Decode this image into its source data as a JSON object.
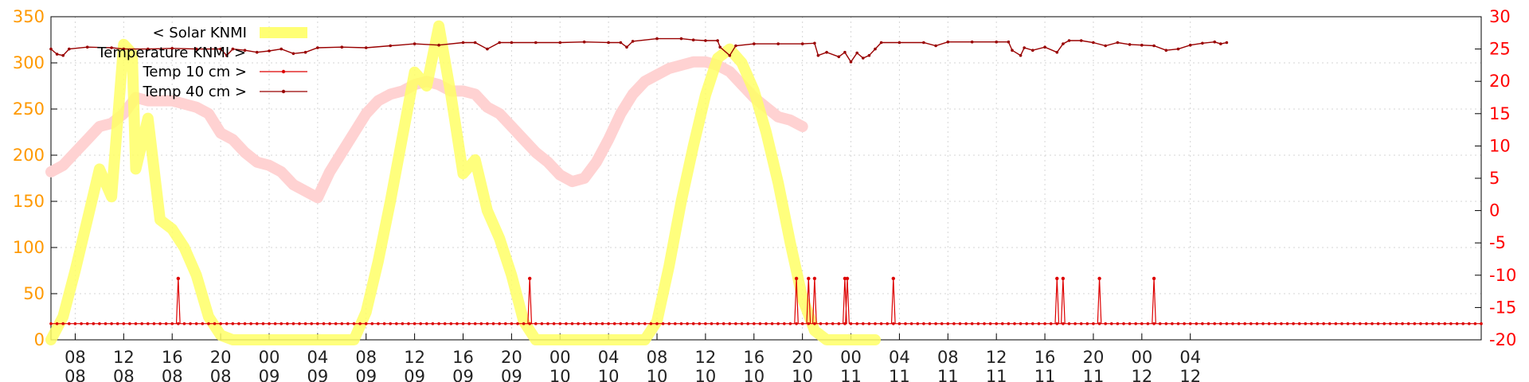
{
  "chart_data": {
    "type": "line",
    "grid": true,
    "legend_placement": "top-left",
    "x_range_hours": [
      0,
      118
    ],
    "x_ticks": [
      {
        "h": 2,
        "label": "08\n08"
      },
      {
        "h": 6,
        "label": "12\n08"
      },
      {
        "h": 10,
        "label": "16\n08"
      },
      {
        "h": 14,
        "label": "20\n08"
      },
      {
        "h": 18,
        "label": "00\n09"
      },
      {
        "h": 22,
        "label": "04\n09"
      },
      {
        "h": 26,
        "label": "08\n09"
      },
      {
        "h": 30,
        "label": "12\n09"
      },
      {
        "h": 34,
        "label": "16\n09"
      },
      {
        "h": 38,
        "label": "20\n09"
      },
      {
        "h": 42,
        "label": "00\n10"
      },
      {
        "h": 46,
        "label": "04\n10"
      },
      {
        "h": 50,
        "label": "08\n10"
      },
      {
        "h": 54,
        "label": "12\n10"
      },
      {
        "h": 58,
        "label": "16\n10"
      },
      {
        "h": 62,
        "label": "20\n10"
      },
      {
        "h": 66,
        "label": "00\n11"
      },
      {
        "h": 70,
        "label": "04\n11"
      },
      {
        "h": 74,
        "label": "08\n11"
      },
      {
        "h": 78,
        "label": "12\n11"
      },
      {
        "h": 82,
        "label": "16\n11"
      },
      {
        "h": 86,
        "label": "20\n11"
      },
      {
        "h": 90,
        "label": "00\n12"
      },
      {
        "h": 94,
        "label": "04\n12"
      }
    ],
    "y_left": {
      "min": 0,
      "max": 350,
      "ticks": [
        0,
        50,
        100,
        150,
        200,
        250,
        300,
        350
      ],
      "color": "#ff9900"
    },
    "y_right": {
      "min": -20,
      "max": 30,
      "ticks": [
        -20,
        -15,
        -10,
        -5,
        0,
        5,
        10,
        15,
        20,
        25,
        30
      ],
      "color": "#ff0000"
    },
    "series": [
      {
        "name": "< Solar KNMI",
        "axis": "left",
        "color": "#ffff66",
        "points": [
          [
            0,
            0
          ],
          [
            1,
            25
          ],
          [
            2,
            75
          ],
          [
            3,
            130
          ],
          [
            4,
            185
          ],
          [
            5,
            155
          ],
          [
            6,
            320
          ],
          [
            6.7,
            310
          ],
          [
            7,
            185
          ],
          [
            8,
            240
          ],
          [
            9,
            130
          ],
          [
            10,
            120
          ],
          [
            11,
            100
          ],
          [
            12,
            70
          ],
          [
            13,
            25
          ],
          [
            14,
            5
          ],
          [
            15,
            0
          ],
          [
            25,
            0
          ],
          [
            26,
            30
          ],
          [
            27,
            85
          ],
          [
            28,
            150
          ],
          [
            29,
            220
          ],
          [
            30,
            290
          ],
          [
            31,
            275
          ],
          [
            32,
            340
          ],
          [
            33,
            265
          ],
          [
            34,
            180
          ],
          [
            35,
            195
          ],
          [
            36,
            140
          ],
          [
            37,
            110
          ],
          [
            38,
            70
          ],
          [
            39,
            20
          ],
          [
            40,
            0
          ],
          [
            49,
            0
          ],
          [
            50,
            20
          ],
          [
            51,
            80
          ],
          [
            52,
            150
          ],
          [
            53,
            210
          ],
          [
            54,
            265
          ],
          [
            55,
            305
          ],
          [
            56,
            315
          ],
          [
            57,
            300
          ],
          [
            58,
            270
          ],
          [
            59,
            225
          ],
          [
            60,
            170
          ],
          [
            61,
            105
          ],
          [
            62,
            45
          ],
          [
            63,
            10
          ],
          [
            64,
            0
          ],
          [
            68,
            0
          ]
        ]
      },
      {
        "name": "Temperature KNMI >",
        "axis": "right",
        "color": "#ffd2d2",
        "points": [
          [
            0,
            6
          ],
          [
            1,
            7
          ],
          [
            2,
            9
          ],
          [
            3,
            11
          ],
          [
            4,
            13
          ],
          [
            5,
            13.5
          ],
          [
            6,
            15
          ],
          [
            7,
            17.5
          ],
          [
            8,
            17
          ],
          [
            9,
            17
          ],
          [
            10,
            17
          ],
          [
            11,
            16.5
          ],
          [
            12,
            16
          ],
          [
            13,
            15
          ],
          [
            14,
            12
          ],
          [
            15,
            11
          ],
          [
            16,
            9
          ],
          [
            17,
            7.5
          ],
          [
            18,
            7
          ],
          [
            19,
            6
          ],
          [
            20,
            4
          ],
          [
            21,
            3
          ],
          [
            22,
            2
          ],
          [
            23,
            6
          ],
          [
            24,
            9
          ],
          [
            25,
            12
          ],
          [
            26,
            15
          ],
          [
            27,
            17
          ],
          [
            28,
            18
          ],
          [
            29,
            18.5
          ],
          [
            30,
            19.5
          ],
          [
            31,
            20
          ],
          [
            32,
            19.5
          ],
          [
            33,
            18.5
          ],
          [
            34,
            18.5
          ],
          [
            35,
            18
          ],
          [
            36,
            16
          ],
          [
            37,
            15
          ],
          [
            38,
            13
          ],
          [
            39,
            11
          ],
          [
            40,
            9
          ],
          [
            41,
            7.5
          ],
          [
            42,
            5.5
          ],
          [
            43,
            4.5
          ],
          [
            44,
            5
          ],
          [
            45,
            7.5
          ],
          [
            46,
            11
          ],
          [
            47,
            15
          ],
          [
            48,
            18
          ],
          [
            49,
            20
          ],
          [
            50,
            21
          ],
          [
            51,
            22
          ],
          [
            52,
            22.5
          ],
          [
            53,
            23
          ],
          [
            54,
            23
          ],
          [
            55,
            22.5
          ],
          [
            56,
            21.5
          ],
          [
            57,
            19.5
          ],
          [
            58,
            17.5
          ],
          [
            59,
            16
          ],
          [
            60,
            14.5
          ],
          [
            61,
            14
          ],
          [
            62,
            13
          ]
        ]
      },
      {
        "name": "Temp 10 cm >",
        "axis": "right",
        "color": "#dd0000",
        "baseline": -17.5,
        "spikes": [
          [
            10.5,
            -10.5
          ],
          [
            39.5,
            -10.5
          ],
          [
            61.5,
            -10.5
          ],
          [
            62.5,
            -10.5
          ],
          [
            63,
            -10.5
          ],
          [
            65.5,
            -10.5
          ],
          [
            65.7,
            -10.5
          ],
          [
            69.5,
            -10.5
          ],
          [
            83,
            -10.5
          ],
          [
            83.5,
            -10.5
          ],
          [
            86.5,
            -10.5
          ],
          [
            91,
            -10.5
          ]
        ]
      },
      {
        "name": "Temp 40 cm >",
        "axis": "right",
        "color": "#990000",
        "points": [
          [
            0,
            25
          ],
          [
            0.5,
            24.2
          ],
          [
            1,
            24
          ],
          [
            1.5,
            25
          ],
          [
            3,
            25.3
          ],
          [
            5,
            25.2
          ],
          [
            6,
            25
          ],
          [
            8,
            25
          ],
          [
            10,
            25.1
          ],
          [
            12,
            25
          ],
          [
            14,
            25
          ],
          [
            14.5,
            24
          ],
          [
            15,
            25
          ],
          [
            16,
            24.8
          ],
          [
            17,
            24.5
          ],
          [
            18,
            24.7
          ],
          [
            19,
            25
          ],
          [
            20,
            24.3
          ],
          [
            21,
            24.5
          ],
          [
            22,
            25.2
          ],
          [
            24,
            25.3
          ],
          [
            26,
            25.2
          ],
          [
            28,
            25.5
          ],
          [
            30,
            25.8
          ],
          [
            32,
            25.6
          ],
          [
            34,
            26
          ],
          [
            35,
            26
          ],
          [
            36,
            25
          ],
          [
            37,
            26
          ],
          [
            38,
            26
          ],
          [
            40,
            26
          ],
          [
            42,
            26
          ],
          [
            44,
            26.1
          ],
          [
            46,
            26
          ],
          [
            47,
            26
          ],
          [
            47.5,
            25.3
          ],
          [
            48,
            26.2
          ],
          [
            50,
            26.6
          ],
          [
            52,
            26.6
          ],
          [
            53,
            26.4
          ],
          [
            54,
            26.3
          ],
          [
            55,
            26.3
          ],
          [
            55.2,
            25.3
          ],
          [
            56,
            24
          ],
          [
            56.5,
            25.5
          ],
          [
            58,
            25.8
          ],
          [
            60,
            25.8
          ],
          [
            62,
            25.8
          ],
          [
            63,
            25.9
          ],
          [
            63.3,
            24
          ],
          [
            64,
            24.5
          ],
          [
            65,
            23.8
          ],
          [
            65.5,
            24.5
          ],
          [
            66,
            23
          ],
          [
            66.5,
            24.4
          ],
          [
            67,
            23.6
          ],
          [
            67.5,
            24
          ],
          [
            68,
            25
          ],
          [
            68.5,
            26
          ],
          [
            70,
            26
          ],
          [
            72,
            26
          ],
          [
            73,
            25.5
          ],
          [
            74,
            26.1
          ],
          [
            76,
            26.1
          ],
          [
            78,
            26.1
          ],
          [
            79,
            26.1
          ],
          [
            79.3,
            24.8
          ],
          [
            80,
            24
          ],
          [
            80.3,
            25.2
          ],
          [
            81,
            24.8
          ],
          [
            82,
            25.3
          ],
          [
            83,
            24.5
          ],
          [
            83.5,
            25.8
          ],
          [
            84,
            26.3
          ],
          [
            85,
            26.3
          ],
          [
            86,
            26
          ],
          [
            87,
            25.5
          ],
          [
            88,
            26
          ],
          [
            89,
            25.7
          ],
          [
            90,
            25.6
          ],
          [
            91,
            25.5
          ],
          [
            92,
            24.8
          ],
          [
            93,
            25
          ],
          [
            94,
            25.6
          ],
          [
            95,
            25.9
          ],
          [
            96,
            26.1
          ],
          [
            96.5,
            25.8
          ],
          [
            97,
            26
          ]
        ]
      }
    ]
  }
}
